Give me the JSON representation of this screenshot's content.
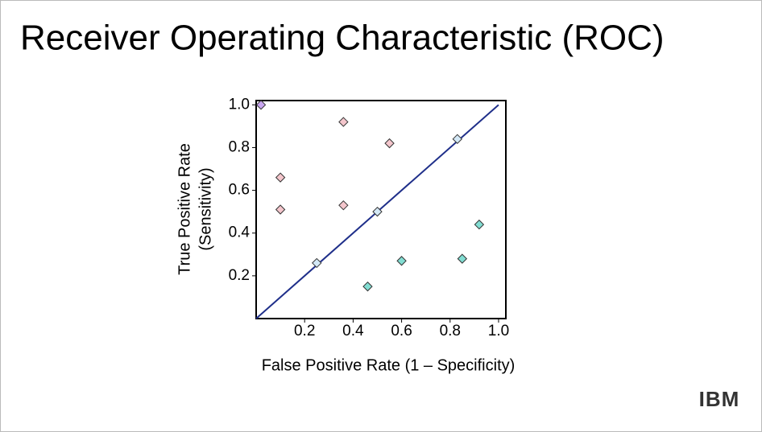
{
  "logo": "IBM",
  "chart_data": {
    "type": "scatter",
    "title": "Receiver Operating Characteristic (ROC)",
    "xlabel": "False Positive Rate (1 – Specificity)",
    "ylabel": [
      "True Positive Rate",
      "(Sensitivity)"
    ],
    "xlim": [
      0,
      1.03
    ],
    "ylim": [
      0,
      1.02
    ],
    "xticks": [
      0.2,
      0.4,
      0.6,
      0.8,
      {
        "value": 1,
        "label": "1.0"
      }
    ],
    "yticks": [
      0.2,
      0.4,
      0.6,
      0.8,
      {
        "value": 1,
        "label": "1.0"
      }
    ],
    "reference_line": {
      "x": [
        0,
        1
      ],
      "y": [
        0,
        1
      ],
      "color": "#1f2f8a"
    },
    "series": [
      {
        "color": "#c9a6f0",
        "x": [
          0.02
        ],
        "values": [
          1.0
        ]
      },
      {
        "color": "#f4c6cc",
        "x": [
          0.36,
          0.55,
          0.1,
          0.1,
          0.36
        ],
        "values": [
          0.92,
          0.82,
          0.66,
          0.51,
          0.53
        ]
      },
      {
        "color": "#d3e8f6",
        "x": [
          0.25,
          0.5,
          0.83
        ],
        "values": [
          0.26,
          0.5,
          0.84
        ]
      },
      {
        "color": "#82ddd2",
        "x": [
          0.46,
          0.6,
          0.85,
          0.92
        ],
        "values": [
          0.15,
          0.27,
          0.28,
          0.44
        ]
      }
    ]
  }
}
